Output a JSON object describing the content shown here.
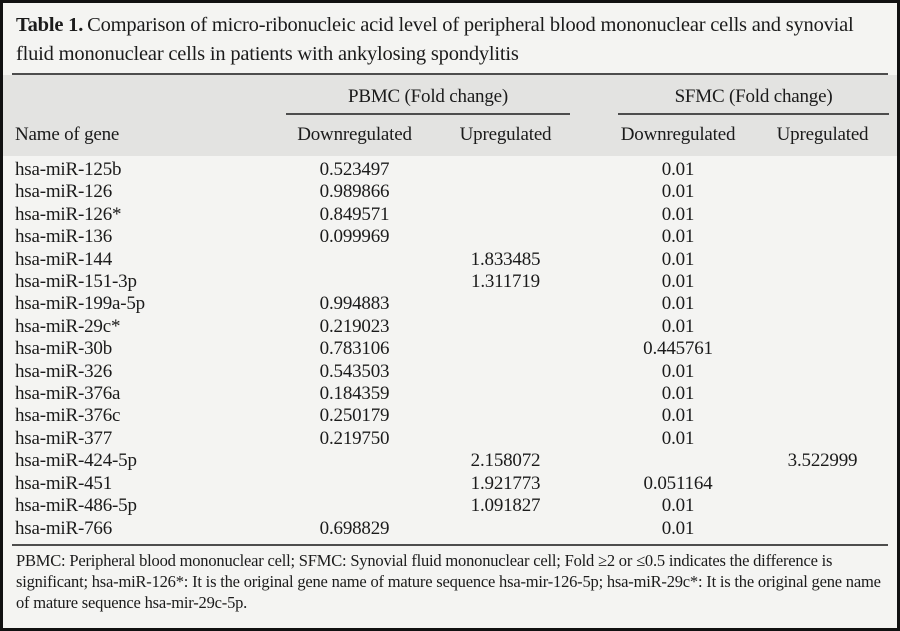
{
  "caption": {
    "label": "Table 1.",
    "text": "Comparison of micro-ribonucleic acid level of peripheral blood mononuclear cells and synovial fluid mononuclear cells in patients with ankylosing spondylitis"
  },
  "header": {
    "gene": "Name of gene",
    "pbmc_group": "PBMC (Fold change)",
    "sfmc_group": "SFMC (Fold change)",
    "pbmc_down": "Downregulated",
    "pbmc_up": "Upregulated",
    "sfmc_down": "Downregulated",
    "sfmc_up": "Upregulated"
  },
  "table": {
    "rows": [
      {
        "gene": "hsa-miR-125b",
        "pbmc_down": "0.523497",
        "pbmc_up": "",
        "sfmc_down": "0.01",
        "sfmc_up": ""
      },
      {
        "gene": "hsa-miR-126",
        "pbmc_down": "0.989866",
        "pbmc_up": "",
        "sfmc_down": "0.01",
        "sfmc_up": ""
      },
      {
        "gene": "hsa-miR-126*",
        "pbmc_down": "0.849571",
        "pbmc_up": "",
        "sfmc_down": "0.01",
        "sfmc_up": ""
      },
      {
        "gene": "hsa-miR-136",
        "pbmc_down": "0.099969",
        "pbmc_up": "",
        "sfmc_down": "0.01",
        "sfmc_up": ""
      },
      {
        "gene": "hsa-miR-144",
        "pbmc_down": "",
        "pbmc_up": "1.833485",
        "sfmc_down": "0.01",
        "sfmc_up": ""
      },
      {
        "gene": "hsa-miR-151-3p",
        "pbmc_down": "",
        "pbmc_up": "1.311719",
        "sfmc_down": "0.01",
        "sfmc_up": ""
      },
      {
        "gene": "hsa-miR-199a-5p",
        "pbmc_down": "0.994883",
        "pbmc_up": "",
        "sfmc_down": "0.01",
        "sfmc_up": ""
      },
      {
        "gene": "hsa-miR-29c*",
        "pbmc_down": "0.219023",
        "pbmc_up": "",
        "sfmc_down": "0.01",
        "sfmc_up": ""
      },
      {
        "gene": "hsa-miR-30b",
        "pbmc_down": "0.783106",
        "pbmc_up": "",
        "sfmc_down": "0.445761",
        "sfmc_up": ""
      },
      {
        "gene": "hsa-miR-326",
        "pbmc_down": "0.543503",
        "pbmc_up": "",
        "sfmc_down": "0.01",
        "sfmc_up": ""
      },
      {
        "gene": "hsa-miR-376a",
        "pbmc_down": "0.184359",
        "pbmc_up": "",
        "sfmc_down": "0.01",
        "sfmc_up": ""
      },
      {
        "gene": "hsa-miR-376c",
        "pbmc_down": "0.250179",
        "pbmc_up": "",
        "sfmc_down": "0.01",
        "sfmc_up": ""
      },
      {
        "gene": "hsa-miR-377",
        "pbmc_down": "0.219750",
        "pbmc_up": "",
        "sfmc_down": "0.01",
        "sfmc_up": ""
      },
      {
        "gene": "hsa-miR-424-5p",
        "pbmc_down": "",
        "pbmc_up": "2.158072",
        "sfmc_down": "",
        "sfmc_up": "3.522999"
      },
      {
        "gene": "hsa-miR-451",
        "pbmc_down": "",
        "pbmc_up": "1.921773",
        "sfmc_down": "0.051164",
        "sfmc_up": ""
      },
      {
        "gene": "hsa-miR-486-5p",
        "pbmc_down": "",
        "pbmc_up": "1.091827",
        "sfmc_down": "0.01",
        "sfmc_up": ""
      },
      {
        "gene": "hsa-miR-766",
        "pbmc_down": "0.698829",
        "pbmc_up": "",
        "sfmc_down": "0.01",
        "sfmc_up": ""
      }
    ]
  },
  "footnote": "PBMC: Peripheral blood mononuclear cell; SFMC: Synovial fluid mononuclear cell; Fold ≥2 or ≤0.5 indicates the difference is significant; hsa-miR-126*: It is the original gene name of mature sequence hsa-mir-126-5p; hsa-miR-29c*: It is the original gene name of mature sequence hsa-mir-29c-5p.",
  "colors": {
    "frame_border": "#111111",
    "page_bg": "#f4f4f2",
    "header_band_bg": "#e3e3e1",
    "rule": "#4d4d4d",
    "text": "#1b1b1b"
  }
}
